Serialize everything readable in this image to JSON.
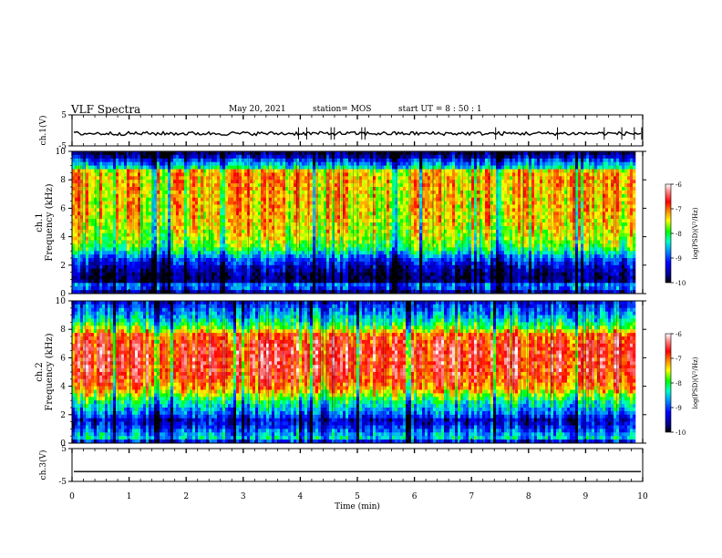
{
  "header": {
    "title": "VLF Spectra",
    "date": "May 20, 2021",
    "station": "station= MOS",
    "start": "start  UT =  8 : 50 : 1"
  },
  "chart_data": [
    {
      "type": "line",
      "panel": "ch1-waveform",
      "ylabel": "ch.1(V)",
      "ylim": [
        -5,
        5
      ],
      "yticks": [
        "5",
        "-5"
      ],
      "xlim": [
        0,
        10
      ],
      "series": [
        {
          "values_baseline": -1
        }
      ]
    },
    {
      "type": "heatmap",
      "panel": "ch1-spectrogram",
      "ylabel": "ch.1\nFrequency (kHz)",
      "ylabel_line1": "ch.1",
      "ylabel_line2": "Frequency (kHz)",
      "ylim": [
        0,
        10
      ],
      "yticks": [
        "0",
        "2",
        "4",
        "6",
        "8",
        "10"
      ],
      "xlim": [
        0,
        9.83
      ],
      "colorbar": {
        "label": "log(PSD)(V²/Hz)",
        "ticks": [
          "-6",
          "-7",
          "-8",
          "-9",
          "-10"
        ],
        "range": [
          -10,
          -6
        ]
      },
      "profile": [
        {
          "f": 0.0,
          "v": -9.6
        },
        {
          "f": 0.3,
          "v": -9.4
        },
        {
          "f": 0.5,
          "v": -8.3
        },
        {
          "f": 0.8,
          "v": -9.7
        },
        {
          "f": 1.2,
          "v": -9.8
        },
        {
          "f": 1.6,
          "v": -9.6
        },
        {
          "f": 2.0,
          "v": -9.3
        },
        {
          "f": 2.5,
          "v": -8.9
        },
        {
          "f": 3.0,
          "v": -8.2
        },
        {
          "f": 3.5,
          "v": -7.8
        },
        {
          "f": 4.0,
          "v": -7.6
        },
        {
          "f": 5.0,
          "v": -7.4
        },
        {
          "f": 6.0,
          "v": -7.3
        },
        {
          "f": 7.0,
          "v": -7.3
        },
        {
          "f": 8.0,
          "v": -7.2
        },
        {
          "f": 8.6,
          "v": -7.3
        },
        {
          "f": 8.9,
          "v": -8.4
        },
        {
          "f": 9.3,
          "v": -8.9
        },
        {
          "f": 9.7,
          "v": -9.6
        },
        {
          "f": 10.0,
          "v": -9.9
        }
      ]
    },
    {
      "type": "heatmap",
      "panel": "ch2-spectrogram",
      "ylabel": "ch.2\nFrequency (kHz)",
      "ylabel_line1": "ch.2",
      "ylabel_line2": "Frequency (kHz)",
      "ylim": [
        0,
        10
      ],
      "yticks": [
        "0",
        "2",
        "4",
        "6",
        "8",
        "10"
      ],
      "xlim": [
        0,
        9.83
      ],
      "colorbar": {
        "label": "log(PSD)(V²/Hz)",
        "ticks": [
          "-6",
          "-7",
          "-8",
          "-9",
          "-10"
        ],
        "range": [
          -10,
          -6
        ]
      },
      "profile": [
        {
          "f": 0.0,
          "v": -9.5
        },
        {
          "f": 0.4,
          "v": -8.4
        },
        {
          "f": 0.8,
          "v": -8.8
        },
        {
          "f": 1.2,
          "v": -9.2
        },
        {
          "f": 1.6,
          "v": -9.4
        },
        {
          "f": 2.0,
          "v": -8.9
        },
        {
          "f": 2.5,
          "v": -8.5
        },
        {
          "f": 3.0,
          "v": -8.1
        },
        {
          "f": 3.5,
          "v": -7.5
        },
        {
          "f": 4.0,
          "v": -7.0
        },
        {
          "f": 5.0,
          "v": -6.7
        },
        {
          "f": 6.0,
          "v": -6.6
        },
        {
          "f": 7.0,
          "v": -6.7
        },
        {
          "f": 7.6,
          "v": -6.9
        },
        {
          "f": 8.0,
          "v": -7.6
        },
        {
          "f": 8.5,
          "v": -8.2
        },
        {
          "f": 9.0,
          "v": -8.6
        },
        {
          "f": 9.5,
          "v": -8.9
        },
        {
          "f": 10.0,
          "v": -9.3
        }
      ]
    },
    {
      "type": "line",
      "panel": "ch3-waveform",
      "ylabel": "ch.3(V)",
      "ylim": [
        -5,
        5
      ],
      "yticks": [
        "5",
        "-5"
      ],
      "xlim": [
        0,
        10
      ],
      "xlabel": "Time (min)",
      "xticks": [
        "0",
        "1",
        "2",
        "3",
        "4",
        "5",
        "6",
        "7",
        "8",
        "9",
        "10"
      ],
      "series": [
        {
          "values_baseline": -2
        }
      ]
    }
  ]
}
